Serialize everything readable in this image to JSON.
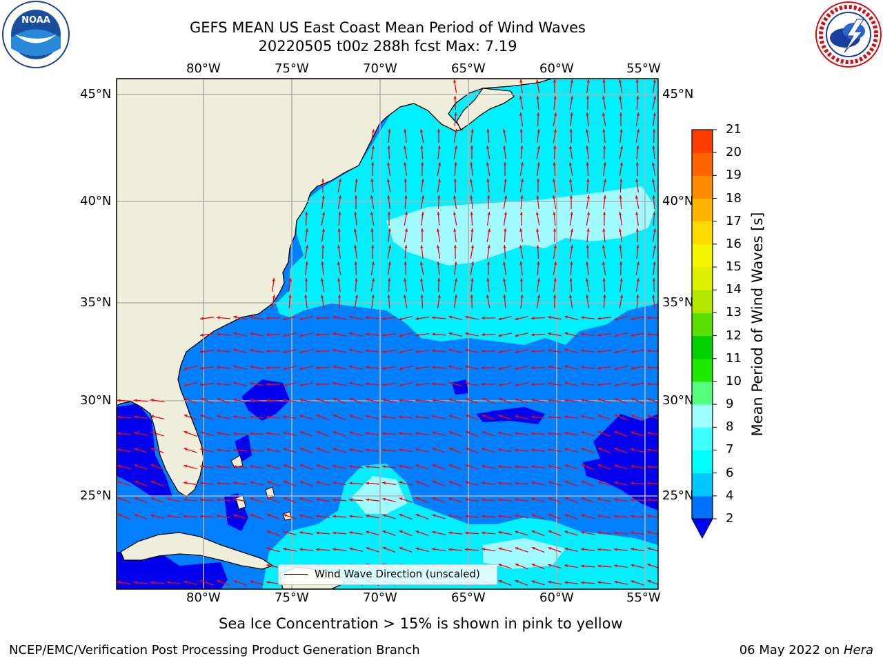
{
  "header": {
    "title_line1": "GEFS MEAN US East Coast Mean Period of Wind Waves",
    "title_line2": "20220505 t00z 288h fcst   Max: 7.19"
  },
  "axes": {
    "lon_labels": [
      "80°W",
      "75°W",
      "70°W",
      "65°W",
      "60°W",
      "55°W"
    ],
    "lat_labels": [
      "45°N",
      "40°N",
      "35°N",
      "30°N",
      "25°N"
    ]
  },
  "legend": {
    "label": "Wind Wave Direction (unscaled)"
  },
  "colorbar": {
    "label": "Mean Period of Wind Waves [s]",
    "ticks": [
      "2",
      "4",
      "6",
      "7",
      "8",
      "9",
      "10",
      "11",
      "12",
      "13",
      "14",
      "15",
      "16",
      "17",
      "18",
      "19",
      "20",
      "21"
    ],
    "colors": [
      "#0070ff",
      "#00c8ff",
      "#00ffff",
      "#40ffff",
      "#9fffff",
      "#55ff80",
      "#1ee800",
      "#00d000",
      "#5ae000",
      "#b4e600",
      "#dcf000",
      "#f5f500",
      "#ffdc00",
      "#ffb400",
      "#ff8c00",
      "#ff6400",
      "#ff3c00",
      "#ff0000"
    ],
    "underflow_color": "#0000ff"
  },
  "notes": {
    "sea_ice": "Sea Ice Concentration > 15% is shown in pink to yellow"
  },
  "footer": {
    "left": "NCEP/EMC/Verification Post Processing Product Generation Branch",
    "date": "06 May 2022 on ",
    "machine": "Hera"
  },
  "logos": {
    "left": "NOAA",
    "right": "NATIONAL WEATHER SERVICE"
  },
  "map_colors": {
    "land": "#efefdc",
    "ocean_mid": "#0080ff",
    "ocean_light": "#00f0ff",
    "ocean_pale": "#9ffbff",
    "ocean_dark": "#0000ee",
    "arrow": "#ff0000",
    "grid": "#b0b0b0"
  }
}
